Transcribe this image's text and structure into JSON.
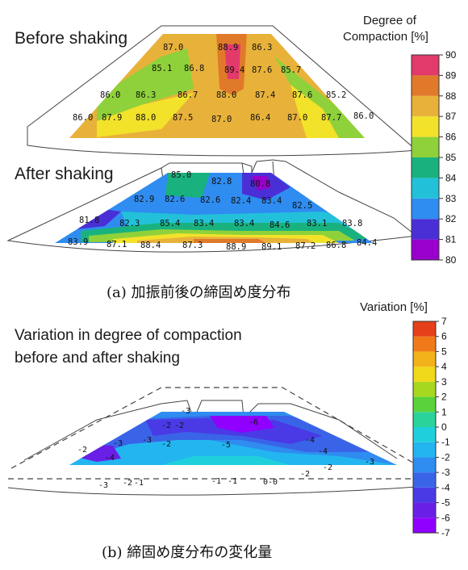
{
  "panel_a": {
    "title_before": "Before shaking",
    "title_after": "After shaking",
    "legend_title_line1": "Degree of",
    "legend_title_line2": "Compaction [%]",
    "caption": "(a) 加振前後の締固め度分布"
  },
  "panel_b": {
    "title_line1": "Variation in degree of compaction",
    "title_line2": "before and after shaking",
    "legend_title": "Variation [%]",
    "caption": "(b) 締固め度分布の変化量"
  },
  "colors": {
    "scale_a": [
      "#9900cc",
      "#4b2fd6",
      "#2f8cf0",
      "#22c1d9",
      "#19b27e",
      "#8fd13a",
      "#f2e22a",
      "#e8b23a",
      "#e07a2a",
      "#e23a6a"
    ],
    "scale_b": [
      "#8f00ff",
      "#6a1fe6",
      "#4a3ae6",
      "#3a64e8",
      "#2f8cf0",
      "#23b5f0",
      "#1fd0dc",
      "#2ad39a",
      "#5ad23c",
      "#a6d81f",
      "#f0d81a",
      "#f3b21a",
      "#f07a1a",
      "#e6401a"
    ]
  },
  "chart_data": [
    {
      "type": "heatmap",
      "name": "Before shaking",
      "title": "Before shaking",
      "colorbar_label": "Degree of Compaction [%]",
      "colorbar_range": [
        80,
        90
      ],
      "colorbar_ticks": [
        "80",
        "81",
        "82",
        "83",
        "84",
        "85",
        "86",
        "87",
        "88",
        "89",
        "90"
      ],
      "values": [
        [
          "87.0",
          "88.9",
          "86.3"
        ],
        [
          "85.1",
          "86.8",
          "89.4",
          "87.6",
          "85.7"
        ],
        [
          "86.0",
          "86.3",
          "86.7",
          "88.0",
          "87.4",
          "87.6",
          "85.2"
        ],
        [
          "86.0",
          "87.9",
          "88.0",
          "87.5",
          "87.0",
          "86.4",
          "87.0",
          "87.7",
          "86.0"
        ]
      ]
    },
    {
      "type": "heatmap",
      "name": "After shaking",
      "title": "After shaking",
      "colorbar_label": "Degree of Compaction [%]",
      "colorbar_range": [
        80,
        90
      ],
      "values": [
        [
          "85.0",
          "82.8",
          "80.8"
        ],
        [
          "82.9",
          "82.6",
          "82.6",
          "82.4",
          "83.4",
          "82.5"
        ],
        [
          "81.8",
          "82.3",
          "85.4",
          "83.4",
          "83.4",
          "84.6",
          "83.1",
          "83.8"
        ],
        [
          "83.9",
          "87.1",
          "88.4",
          "87.3",
          "88.9",
          "89.1",
          "87.2",
          "86.8",
          "84.4"
        ]
      ]
    },
    {
      "type": "heatmap",
      "name": "Variation in degree of compaction before and after shaking",
      "title": "Variation in degree of compaction before and after shaking",
      "colorbar_label": "Variation [%]",
      "colorbar_range": [
        -7,
        7
      ],
      "colorbar_ticks": [
        "7",
        "6",
        "5",
        "4",
        "3",
        "2",
        "1",
        "0",
        "-1",
        "-2",
        "-3",
        "-4",
        "-5",
        "-6",
        "-7"
      ],
      "contour_labels": [
        "-3",
        "-2",
        "-2",
        "-3",
        "-6",
        "-4",
        "-5",
        "-4",
        "-3",
        "-2",
        "-4",
        "-3",
        "-1",
        "-2",
        "-2",
        "-1",
        "-1",
        "0-0",
        "-2",
        "-2",
        "-3"
      ]
    }
  ]
}
